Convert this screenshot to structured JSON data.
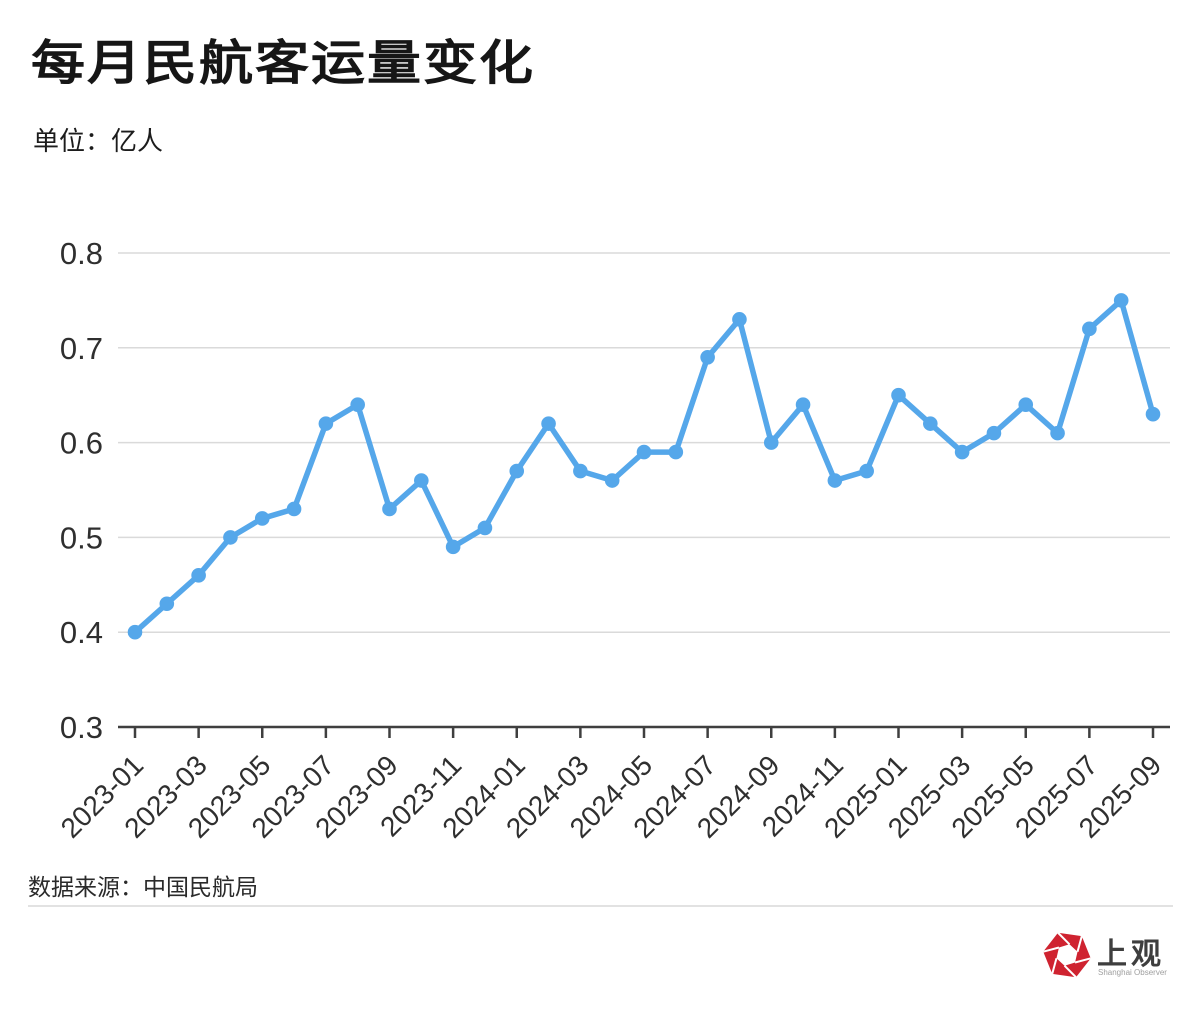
{
  "title": "每月民航客运量变化",
  "unit_label": "单位：亿人",
  "source_label": "数据来源：中国民航局",
  "logo": {
    "cn": "上观",
    "en": "Shanghai Observer",
    "red": "#cf2330"
  },
  "chart_data": {
    "type": "line",
    "title": "每月民航客运量变化",
    "ylabel": "亿人",
    "x": [
      "2023-01",
      "2023-02",
      "2023-03",
      "2023-04",
      "2023-05",
      "2023-06",
      "2023-07",
      "2023-08",
      "2023-09",
      "2023-10",
      "2023-11",
      "2023-12",
      "2024-01",
      "2024-02",
      "2024-03",
      "2024-04",
      "2024-05",
      "2024-06",
      "2024-07",
      "2024-08",
      "2024-09",
      "2024-10",
      "2024-11",
      "2024-12",
      "2025-01",
      "2025-02",
      "2025-03",
      "2025-04",
      "2025-05",
      "2025-06",
      "2025-07",
      "2025-08",
      "2025-09"
    ],
    "values": [
      0.4,
      0.43,
      0.46,
      0.5,
      0.52,
      0.53,
      0.62,
      0.64,
      0.53,
      0.56,
      0.49,
      0.51,
      0.57,
      0.62,
      0.57,
      0.56,
      0.59,
      0.59,
      0.69,
      0.73,
      0.6,
      0.64,
      0.56,
      0.57,
      0.65,
      0.62,
      0.59,
      0.61,
      0.64,
      0.61,
      0.72,
      0.75,
      0.63
    ],
    "ylim": [
      0.3,
      0.8
    ],
    "yticks": [
      0.3,
      0.4,
      0.5,
      0.6,
      0.7,
      0.8
    ],
    "x_label_every": 2,
    "grid": true,
    "line_color": "#55a7ea",
    "grid_color": "#dadada",
    "axis_color": "#3f3f3f",
    "tick_label_color": "#2f2f2f"
  }
}
